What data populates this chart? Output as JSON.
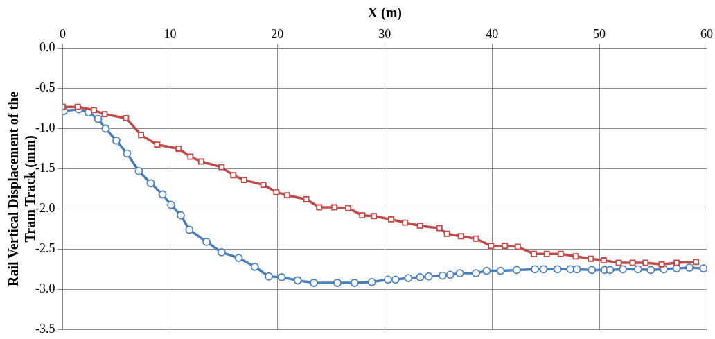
{
  "chart_data": {
    "type": "line",
    "xlabel": "X (m)",
    "ylabel": "Rail Vertical Displacement of the Tram Track (mm)",
    "xlim": [
      0,
      60
    ],
    "xticks": [
      0,
      10,
      20,
      30,
      40,
      50,
      60
    ],
    "ylim": [
      -3.5,
      0
    ],
    "yticks": [
      {
        "value": 0,
        "label": "0.0"
      },
      {
        "value": -0.5,
        "label": "-0.5"
      },
      {
        "value": -1,
        "label": "-1.0"
      },
      {
        "value": -1.5,
        "label": "-1.5"
      },
      {
        "value": -2,
        "label": "-2.0"
      },
      {
        "value": -2.5,
        "label": "-2.5"
      },
      {
        "value": -3,
        "label": "-3.0"
      },
      {
        "value": -3.5,
        "label": "-3.5"
      }
    ],
    "grid": true,
    "line_style": "solid",
    "legend": false,
    "series": [
      {
        "color": "#4a7ebb",
        "marker": "circle",
        "x": [
          0.1,
          1.5,
          2.4,
          3.3,
          4.0,
          5.0,
          6.0,
          7.1,
          8.2,
          9.3,
          10.1,
          11.0,
          11.8,
          13.4,
          14.8,
          16.4,
          17.9,
          19.2,
          20.4,
          21.9,
          23.4,
          25.6,
          27.2,
          28.8,
          30.3,
          31.0,
          32.2,
          33.3,
          34.1,
          35.4,
          36.1,
          37.0,
          38.5,
          39.5,
          40.8,
          42.3,
          44.0,
          44.8,
          46.1,
          47.3,
          47.9,
          49.3,
          50.5,
          51.0,
          52.2,
          53.6,
          54.8,
          56.0,
          57.2,
          58.4,
          59.7
        ],
        "values": [
          -0.78,
          -0.76,
          -0.8,
          -0.88,
          -1.0,
          -1.15,
          -1.31,
          -1.53,
          -1.68,
          -1.82,
          -1.95,
          -2.08,
          -2.26,
          -2.41,
          -2.54,
          -2.61,
          -2.72,
          -2.84,
          -2.85,
          -2.89,
          -2.92,
          -2.92,
          -2.92,
          -2.91,
          -2.88,
          -2.88,
          -2.86,
          -2.85,
          -2.84,
          -2.83,
          -2.82,
          -2.8,
          -2.8,
          -2.77,
          -2.77,
          -2.76,
          -2.75,
          -2.75,
          -2.75,
          -2.75,
          -2.75,
          -2.76,
          -2.76,
          -2.76,
          -2.75,
          -2.75,
          -2.76,
          -2.75,
          -2.74,
          -2.73,
          -2.74
        ]
      },
      {
        "color": "#be4b48",
        "marker": "square",
        "x": [
          0,
          1.4,
          2.9,
          3.9,
          5.9,
          7.3,
          8.8,
          10.8,
          11.9,
          12.9,
          14.8,
          15.9,
          16.9,
          18.7,
          19.9,
          20.9,
          22.7,
          23.9,
          25.3,
          26.6,
          27.9,
          29.0,
          30.6,
          31.9,
          33.3,
          35.1,
          35.8,
          37.1,
          38.5,
          39.9,
          41.2,
          42.4,
          43.9,
          45.1,
          46.4,
          47.8,
          49.2,
          50.4,
          51.8,
          53.1,
          54.3,
          55.8,
          57.2,
          59.0
        ],
        "values": [
          -0.73,
          -0.73,
          -0.77,
          -0.82,
          -0.87,
          -1.08,
          -1.2,
          -1.25,
          -1.35,
          -1.41,
          -1.48,
          -1.58,
          -1.64,
          -1.7,
          -1.79,
          -1.83,
          -1.88,
          -1.98,
          -1.98,
          -1.99,
          -2.08,
          -2.09,
          -2.13,
          -2.17,
          -2.21,
          -2.24,
          -2.31,
          -2.34,
          -2.37,
          -2.46,
          -2.46,
          -2.47,
          -2.56,
          -2.56,
          -2.56,
          -2.59,
          -2.62,
          -2.64,
          -2.67,
          -2.67,
          -2.67,
          -2.69,
          -2.67,
          -2.66
        ]
      }
    ]
  }
}
